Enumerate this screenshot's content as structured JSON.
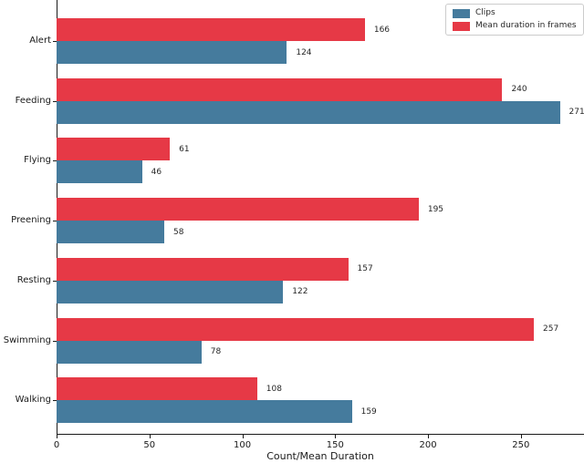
{
  "chart_data": {
    "type": "bar",
    "orientation": "horizontal",
    "title": "",
    "xlabel": "Count/Mean Duration",
    "ylabel": "",
    "categories": [
      "Alert",
      "Feeding",
      "Flying",
      "Preening",
      "Resting",
      "Swimming",
      "Walking"
    ],
    "series": [
      {
        "name": "Clips",
        "color": "#457b9d",
        "values": [
          124,
          271,
          46,
          58,
          122,
          78,
          159
        ]
      },
      {
        "name": "Mean duration in frames",
        "color": "#e63946",
        "values": [
          166,
          240,
          61,
          195,
          157,
          257,
          108
        ]
      }
    ],
    "bar_order_top_to_bottom": [
      "Mean duration in frames",
      "Clips"
    ],
    "value_labels_shown": true,
    "xticks": [
      0,
      50,
      100,
      150,
      200,
      250
    ],
    "xtick_labels": [
      "0",
      "50",
      "100",
      "150",
      "200",
      "250"
    ],
    "xlim": [
      0,
      284
    ],
    "grid": false,
    "legend_position": "upper right",
    "legend_items": [
      "Clips",
      "Mean duration in frames"
    ]
  }
}
